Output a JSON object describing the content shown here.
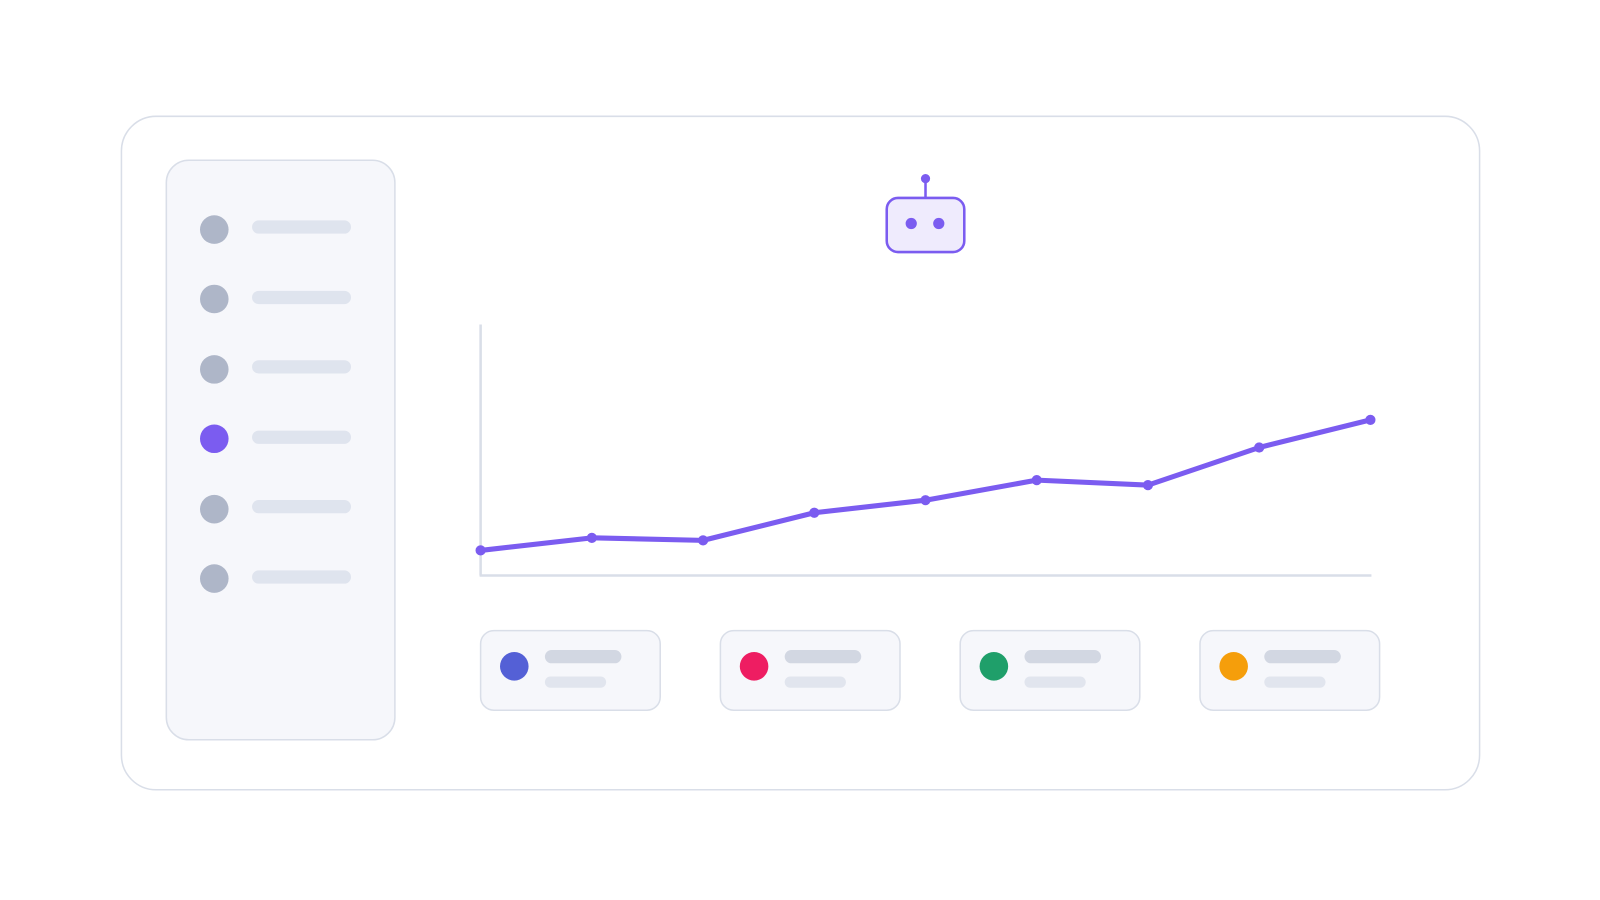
{
  "chart_data": {
    "type": "line",
    "categories": [
      null,
      null,
      null,
      null,
      null,
      null,
      null,
      null,
      null
    ],
    "values": [
      10,
      15,
      14,
      25,
      30,
      38,
      36,
      51,
      62
    ],
    "color": "#7b5cf0",
    "ylim": [
      0,
      100
    ]
  }
}
